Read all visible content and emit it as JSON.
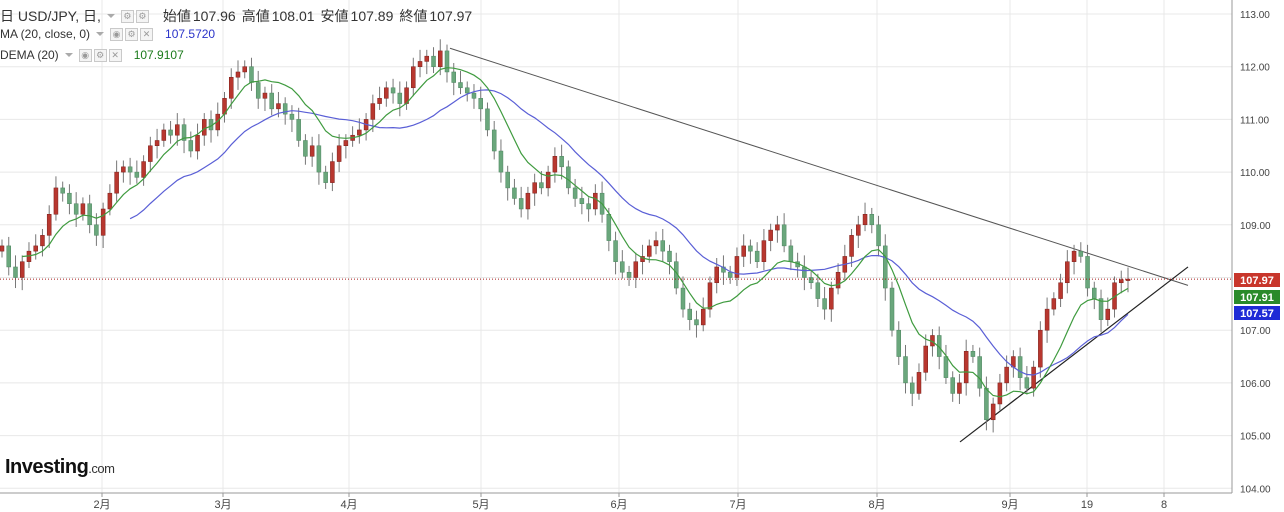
{
  "header": {
    "symbol": "日 USD/JPY, 日,",
    "open_label": "始値",
    "open": "107.96",
    "high_label": "高値",
    "high": "108.01",
    "low_label": "安値",
    "low": "107.89",
    "close_label": "終値",
    "close": "107.97"
  },
  "indicators": [
    {
      "label": "MA (20, close, 0)",
      "value": "107.5720",
      "color": "#2b34c9"
    },
    {
      "label": "DEMA (20)",
      "value": "107.9107",
      "color": "#1b7a1b"
    }
  ],
  "brand": {
    "name": "Investing",
    "suffix": ".com"
  },
  "colors": {
    "up": "#b8372f",
    "down": "#6aa77c",
    "ma": "#5a5fd6",
    "dema": "#3f9b3f",
    "grid": "#e8e8e8",
    "price_line": "#a31b1b",
    "trend": "#555555"
  },
  "chart_data": {
    "type": "candlestick",
    "y_axis_ticks": [
      "113.00",
      "112.00",
      "111.00",
      "110.00",
      "109.00",
      "108.00",
      "107.00",
      "106.00",
      "105.00",
      "104.00"
    ],
    "ylim": [
      104.0,
      113.0
    ],
    "x_axis_ticks": [
      "2月",
      "3月",
      "4月",
      "5月",
      "6月",
      "7月",
      "8月",
      "9月",
      "19",
      "8"
    ],
    "price_labels": [
      {
        "value": "107.97",
        "color": "#c8362b"
      },
      {
        "value": "107.91",
        "color": "#2a8a2a"
      },
      {
        "value": "107.57",
        "color": "#1e2bd6"
      }
    ],
    "current_price": 107.97,
    "closes": [
      108.6,
      108.2,
      108.0,
      108.3,
      108.5,
      108.6,
      108.8,
      109.2,
      109.7,
      109.6,
      109.4,
      109.2,
      109.4,
      109.0,
      108.8,
      109.3,
      109.6,
      110.0,
      110.1,
      110.0,
      109.9,
      110.2,
      110.5,
      110.6,
      110.8,
      110.7,
      110.9,
      110.6,
      110.4,
      110.7,
      111.0,
      110.8,
      111.1,
      111.4,
      111.8,
      111.9,
      112.0,
      111.7,
      111.4,
      111.5,
      111.2,
      111.3,
      111.1,
      111.0,
      110.6,
      110.3,
      110.5,
      110.0,
      109.8,
      110.2,
      110.5,
      110.6,
      110.7,
      110.8,
      111.0,
      111.3,
      111.4,
      111.6,
      111.5,
      111.3,
      111.6,
      112.0,
      112.1,
      112.2,
      112.0,
      112.3,
      111.9,
      111.7,
      111.6,
      111.5,
      111.4,
      111.2,
      110.8,
      110.4,
      110.0,
      109.7,
      109.5,
      109.3,
      109.6,
      109.8,
      109.7,
      110.0,
      110.3,
      110.1,
      109.7,
      109.5,
      109.4,
      109.3,
      109.6,
      109.2,
      108.7,
      108.3,
      108.1,
      108.0,
      108.3,
      108.4,
      108.6,
      108.7,
      108.5,
      108.3,
      107.8,
      107.4,
      107.2,
      107.1,
      107.4,
      107.9,
      108.2,
      108.1,
      108.0,
      108.4,
      108.6,
      108.5,
      108.3,
      108.7,
      108.9,
      109.0,
      108.6,
      108.3,
      108.2,
      108.0,
      107.9,
      107.6,
      107.4,
      107.8,
      108.1,
      108.4,
      108.8,
      109.0,
      109.2,
      109.0,
      108.6,
      107.8,
      107.0,
      106.5,
      106.0,
      105.8,
      106.2,
      106.7,
      106.9,
      106.5,
      106.1,
      105.8,
      106.0,
      106.6,
      106.5,
      105.9,
      105.3,
      105.6,
      106.0,
      106.3,
      106.5,
      106.1,
      105.9,
      106.3,
      107.0,
      107.4,
      107.6,
      107.9,
      108.3,
      108.5,
      108.4,
      107.8,
      107.6,
      107.2,
      107.4,
      107.9,
      107.96,
      107.97
    ]
  }
}
